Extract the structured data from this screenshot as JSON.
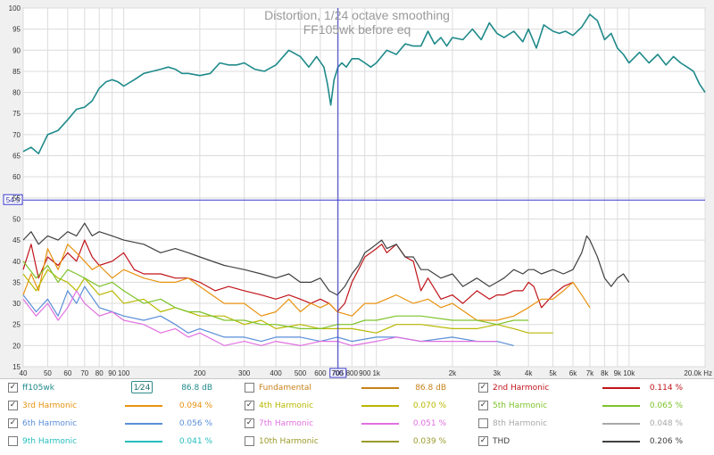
{
  "chart_data": {
    "type": "line",
    "title": "Distortion, 1/24 octave smoothing",
    "subtitle": "FF105wk before eq",
    "xscale": "log",
    "xlim": [
      40,
      20000
    ],
    "ylim": [
      15,
      100
    ],
    "x_tick_labels": [
      "40",
      "50",
      "60",
      "70",
      "80",
      "90",
      "100",
      "200",
      "300",
      "400",
      "500",
      "600",
      "700",
      "800",
      "900",
      "1k",
      "2k",
      "3k",
      "4k",
      "5k",
      "6k",
      "7k",
      "8k",
      "9k",
      "10k",
      "20.0k Hz"
    ],
    "x_tick_values": [
      40,
      50,
      60,
      70,
      80,
      90,
      100,
      200,
      300,
      400,
      500,
      600,
      700,
      800,
      900,
      1000,
      2000,
      3000,
      4000,
      5000,
      6000,
      7000,
      8000,
      9000,
      10000,
      20000
    ],
    "y_ticks": [
      15,
      20,
      25,
      30,
      35,
      40,
      45,
      50,
      55,
      60,
      65,
      70,
      75,
      80,
      85,
      90,
      95,
      100
    ],
    "cursor": {
      "x_label": "705",
      "x": 705,
      "y_label": "54.5",
      "y": 54.5
    },
    "grid": true,
    "series": [
      {
        "name": "ff105wk",
        "color": "#1f8a8a",
        "x": [
          40,
          43,
          46,
          50,
          55,
          60,
          65,
          70,
          75,
          80,
          85,
          90,
          95,
          100,
          110,
          120,
          130,
          140,
          150,
          160,
          170,
          180,
          200,
          220,
          240,
          260,
          280,
          300,
          330,
          360,
          400,
          450,
          500,
          540,
          580,
          620,
          640,
          660,
          680,
          705,
          730,
          760,
          800,
          850,
          900,
          950,
          1000,
          1100,
          1200,
          1300,
          1400,
          1500,
          1600,
          1700,
          1800,
          1900,
          2000,
          2200,
          2400,
          2600,
          2800,
          3000,
          3200,
          3500,
          3800,
          4000,
          4300,
          4600,
          5000,
          5300,
          5600,
          6000,
          6500,
          7000,
          7500,
          8000,
          8500,
          9000,
          9500,
          10000,
          11000,
          12000,
          13000,
          14000,
          15000,
          16000,
          17000,
          18000,
          19000,
          20000
        ],
        "y": [
          66,
          67,
          65.5,
          70,
          71,
          73.5,
          76,
          76.5,
          78,
          81,
          82.5,
          83,
          82.5,
          81.5,
          83,
          84.5,
          85,
          85.5,
          86,
          85.5,
          84.5,
          84.5,
          84,
          84.5,
          87,
          86.5,
          86.5,
          87,
          85.5,
          85,
          86.5,
          90,
          88.5,
          86,
          88.5,
          86,
          82,
          77,
          83,
          86,
          87,
          86,
          88,
          88,
          87,
          86,
          87,
          90,
          89,
          91.5,
          91,
          91,
          94.5,
          91.5,
          93,
          91,
          93,
          92.5,
          95,
          92.5,
          96.5,
          94,
          93,
          94.5,
          92,
          95,
          90.5,
          96,
          94.5,
          94,
          94.5,
          93.5,
          95.5,
          98.5,
          97,
          92.5,
          94,
          90.5,
          89,
          87,
          89.5,
          87,
          89,
          86.5,
          88.5,
          87,
          86,
          85,
          82,
          80
        ]
      },
      {
        "name": "Fundamental",
        "color": "#c8821a",
        "enabled": false
      },
      {
        "name": "2nd Harmonic",
        "color": "#c0141a",
        "x": [
          40,
          43,
          46,
          50,
          55,
          60,
          65,
          70,
          75,
          80,
          90,
          100,
          110,
          120,
          140,
          160,
          180,
          200,
          230,
          260,
          300,
          350,
          400,
          450,
          500,
          550,
          600,
          650,
          700,
          750,
          800,
          850,
          900,
          950,
          1000,
          1050,
          1100,
          1200,
          1300,
          1400,
          1500,
          1600,
          1800,
          2000,
          2200,
          2500,
          2800,
          3000,
          3200,
          3500,
          3800,
          4000,
          4200,
          4500,
          5000,
          5500,
          6000
        ],
        "y": [
          38,
          44,
          36,
          41,
          39,
          42,
          40,
          45,
          41,
          39,
          40,
          42,
          38,
          37,
          37,
          36,
          36,
          35,
          33,
          34,
          33,
          32,
          31,
          32,
          31,
          30,
          31,
          30,
          28,
          30,
          35,
          38,
          41,
          42,
          43,
          44,
          42,
          44,
          41,
          40,
          33,
          36,
          31,
          32,
          30,
          33,
          31,
          32,
          32,
          33,
          33,
          35,
          34,
          29,
          32,
          34,
          35
        ]
      },
      {
        "name": "3rd Harmonic",
        "color": "#e8920f",
        "x": [
          40,
          43,
          46,
          50,
          55,
          60,
          65,
          70,
          75,
          80,
          90,
          100,
          120,
          140,
          160,
          180,
          200,
          250,
          300,
          350,
          400,
          450,
          500,
          550,
          600,
          650,
          700,
          800,
          900,
          1000,
          1200,
          1400,
          1600,
          1800,
          2000,
          2500,
          3000,
          3500,
          4000,
          4500,
          5000,
          5500,
          6000,
          6500,
          7000
        ],
        "y": [
          32,
          37,
          33,
          43,
          38,
          44,
          42,
          40,
          38,
          39,
          36,
          38,
          36,
          35,
          35,
          36,
          34,
          30,
          30,
          27,
          28,
          31,
          28,
          30,
          29,
          30,
          28,
          27,
          30,
          30,
          32,
          30,
          31,
          29,
          30,
          26,
          26,
          27,
          29,
          31,
          31,
          33,
          35,
          32,
          29
        ]
      },
      {
        "name": "4th Harmonic",
        "color": "#b8b800",
        "x": [
          40,
          45,
          50,
          55,
          60,
          65,
          70,
          80,
          90,
          100,
          120,
          140,
          160,
          180,
          200,
          250,
          300,
          350,
          400,
          500,
          600,
          700,
          800,
          1000,
          1200,
          1500,
          2000,
          2500,
          3000,
          3500,
          4000,
          5000
        ],
        "y": [
          37,
          33,
          38,
          36,
          35,
          33,
          36,
          32,
          33,
          30,
          31,
          28,
          29,
          28,
          27,
          27,
          25,
          26,
          24,
          25,
          24,
          24,
          24,
          23,
          25,
          25,
          24,
          24,
          25,
          24,
          23,
          23
        ]
      },
      {
        "name": "5th Harmonic",
        "color": "#7dc32a",
        "x": [
          40,
          45,
          50,
          55,
          60,
          65,
          70,
          80,
          90,
          100,
          120,
          140,
          160,
          180,
          200,
          250,
          300,
          350,
          400,
          500,
          600,
          700,
          800,
          900,
          1000,
          1200,
          1500,
          2000,
          2500,
          3000,
          3500,
          4000
        ],
        "y": [
          40,
          36,
          39,
          35,
          38,
          37,
          36,
          34,
          35,
          33,
          30,
          31,
          29,
          28,
          28,
          26,
          26,
          25,
          25,
          24,
          24,
          25,
          25,
          26,
          26,
          27,
          27,
          26,
          26,
          25,
          26,
          26
        ]
      },
      {
        "name": "6th Harmonic",
        "color": "#5a8ed8",
        "x": [
          40,
          45,
          50,
          55,
          60,
          65,
          70,
          80,
          90,
          100,
          120,
          140,
          160,
          180,
          200,
          250,
          300,
          350,
          400,
          500,
          600,
          700,
          800,
          1000,
          1200,
          1500,
          2000,
          2500,
          3000,
          3500
        ],
        "y": [
          32,
          28,
          31,
          27,
          33,
          30,
          34,
          29,
          28,
          27,
          26,
          27,
          25,
          23,
          24,
          22,
          22,
          21,
          22,
          22,
          21,
          22,
          21,
          22,
          22,
          21,
          22,
          21,
          21,
          20
        ]
      },
      {
        "name": "7th Harmonic",
        "color": "#e070e0",
        "x": [
          40,
          45,
          50,
          55,
          60,
          65,
          70,
          80,
          90,
          100,
          120,
          140,
          160,
          180,
          200,
          250,
          300,
          350,
          400,
          500,
          600,
          700,
          800,
          1000,
          1200,
          1500,
          2000,
          2500,
          3000
        ],
        "y": [
          31,
          27,
          30,
          26,
          29,
          33,
          30,
          27,
          28,
          26,
          25,
          23,
          24,
          22,
          23,
          20,
          21,
          20,
          21,
          20,
          21,
          21,
          20,
          21,
          22,
          21,
          21,
          21,
          21
        ]
      },
      {
        "name": "8th Harmonic",
        "color": "#a8a8a8",
        "enabled": false
      },
      {
        "name": "9th Harmonic",
        "color": "#26bdbd",
        "enabled": false
      },
      {
        "name": "10th Harmonic",
        "color": "#9a9a2a",
        "enabled": false
      },
      {
        "name": "THD",
        "color": "#404040",
        "x": [
          40,
          43,
          46,
          50,
          55,
          60,
          65,
          70,
          75,
          80,
          90,
          100,
          120,
          140,
          160,
          180,
          200,
          250,
          300,
          350,
          400,
          450,
          500,
          550,
          600,
          650,
          700,
          750,
          800,
          850,
          900,
          950,
          1000,
          1050,
          1100,
          1200,
          1300,
          1400,
          1500,
          1600,
          1800,
          2000,
          2200,
          2500,
          2800,
          3000,
          3200,
          3500,
          3800,
          4000,
          4200,
          4500,
          5000,
          5500,
          6000,
          6500,
          6800,
          7000,
          7500,
          8000,
          8500,
          9000,
          9500,
          10000
        ],
        "y": [
          45,
          47,
          44,
          46,
          45,
          47,
          46,
          49,
          46,
          47,
          46,
          45,
          44,
          42,
          43,
          42,
          41,
          39,
          38,
          37,
          36,
          37,
          35,
          35,
          36,
          33,
          32,
          34,
          37,
          39,
          42,
          43,
          44,
          45,
          43,
          44,
          41,
          41,
          38,
          38,
          36,
          37,
          34,
          36,
          34,
          35,
          36,
          38,
          37,
          38,
          38,
          37,
          38,
          37,
          38,
          42,
          46,
          45,
          41,
          36,
          34,
          36,
          37,
          35
        ]
      }
    ]
  },
  "legend": {
    "items": [
      {
        "label": "ff105wk",
        "checked": true,
        "value": "86.8 dB",
        "color": "#1f8a8a",
        "smoothing": "1⁄24"
      },
      {
        "label": "Fundamental",
        "checked": false,
        "value": "86.8 dB",
        "color": "#c8821a"
      },
      {
        "label": "2nd Harmonic",
        "checked": true,
        "value": "0.114 %",
        "color": "#c0141a"
      },
      {
        "label": "3rd Harmonic",
        "checked": true,
        "value": "0.094 %",
        "color": "#e8920f"
      },
      {
        "label": "4th Harmonic",
        "checked": true,
        "value": "0.070 %",
        "color": "#b8b800"
      },
      {
        "label": "5th Harmonic",
        "checked": true,
        "value": "0.065 %",
        "color": "#7dc32a"
      },
      {
        "label": "6th Harmonic",
        "checked": true,
        "value": "0.056 %",
        "color": "#5a8ed8"
      },
      {
        "label": "7th Harmonic",
        "checked": true,
        "value": "0.051 %",
        "color": "#e070e0"
      },
      {
        "label": "8th Harmonic",
        "checked": false,
        "value": "0.048 %",
        "color": "#a8a8a8"
      },
      {
        "label": "9th Harmonic",
        "checked": false,
        "value": "0.041 %",
        "color": "#26bdbd"
      },
      {
        "label": "10th Harmonic",
        "checked": false,
        "value": "0.039 %",
        "color": "#9a9a2a"
      },
      {
        "label": "THD",
        "checked": true,
        "value": "0.206 %",
        "color": "#404040"
      }
    ]
  }
}
